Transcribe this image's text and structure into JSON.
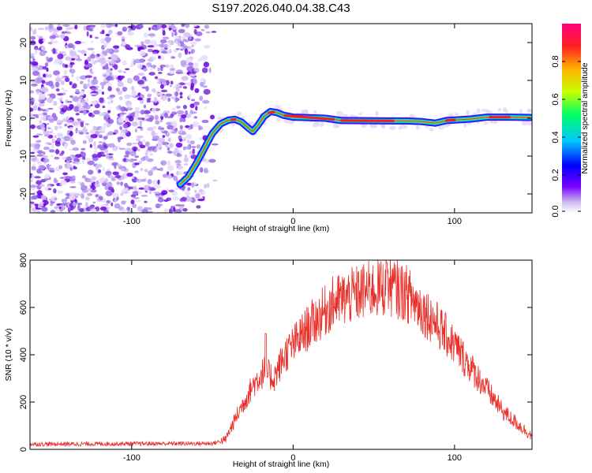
{
  "title": "S197.2026.040.04.38.C43",
  "chart_data": [
    {
      "type": "heatmap",
      "name": "spectrogram",
      "xlabel": "Height of straight line (km)",
      "ylabel": "Frequency (Hz)",
      "xlim": [
        -163,
        148
      ],
      "ylim": [
        -25,
        25
      ],
      "xticks": [
        -100,
        0,
        100
      ],
      "yticks": [
        20,
        10,
        0,
        -10,
        -20
      ],
      "colorbar": {
        "label": "Normalized spectral amplitude",
        "range": [
          0.0,
          1.0
        ],
        "ticks": [
          "0.0",
          "0.2",
          "0.4",
          "0.6",
          "0.8"
        ],
        "colors": [
          "#ffffff",
          "#c8b4f0",
          "#7800ff",
          "#0000ff",
          "#00c8ff",
          "#00ff64",
          "#c8ff00",
          "#ffb400",
          "#ff2020",
          "#ff0080"
        ]
      },
      "noise_region_x": [
        -163,
        -52
      ],
      "ridge": [
        {
          "x": -70,
          "y": -17.5
        },
        {
          "x": -65,
          "y": -15.5
        },
        {
          "x": -60,
          "y": -12
        },
        {
          "x": -55,
          "y": -8
        },
        {
          "x": -50,
          "y": -4
        },
        {
          "x": -45,
          "y": -1.5
        },
        {
          "x": -40,
          "y": -0.5
        },
        {
          "x": -36,
          "y": -0.3
        },
        {
          "x": -32,
          "y": -1.0
        },
        {
          "x": -28,
          "y": -2.5
        },
        {
          "x": -25,
          "y": -3.5
        },
        {
          "x": -22,
          "y": -2.0
        },
        {
          "x": -18,
          "y": 0.5
        },
        {
          "x": -14,
          "y": 1.8
        },
        {
          "x": -10,
          "y": 1.5
        },
        {
          "x": -6,
          "y": 0.8
        },
        {
          "x": 0,
          "y": 0.3
        },
        {
          "x": 20,
          "y": 0.0
        },
        {
          "x": 30,
          "y": -0.6
        },
        {
          "x": 60,
          "y": -0.7
        },
        {
          "x": 70,
          "y": -0.7
        },
        {
          "x": 80,
          "y": -0.9
        },
        {
          "x": 88,
          "y": -1.3
        },
        {
          "x": 95,
          "y": -0.6
        },
        {
          "x": 110,
          "y": -0.2
        },
        {
          "x": 120,
          "y": 0.3
        },
        {
          "x": 135,
          "y": 0.3
        },
        {
          "x": 147,
          "y": 0.2
        }
      ]
    },
    {
      "type": "line",
      "name": "snr",
      "xlabel": "Height of straight line (km)",
      "ylabel": "SNR (10 * v/v)",
      "xlim": [
        -163,
        148
      ],
      "ylim": [
        0,
        800
      ],
      "xticks": [
        -100,
        0,
        100
      ],
      "yticks": [
        0,
        200,
        400,
        600,
        800
      ],
      "color": "#e8302a",
      "envelope": [
        {
          "x": -163,
          "y": 22
        },
        {
          "x": -50,
          "y": 25
        },
        {
          "x": -42,
          "y": 40
        },
        {
          "x": -35,
          "y": 140
        },
        {
          "x": -25,
          "y": 270
        },
        {
          "x": -18,
          "y": 330
        },
        {
          "x": -12,
          "y": 300
        },
        {
          "x": -5,
          "y": 400
        },
        {
          "x": 10,
          "y": 520
        },
        {
          "x": 25,
          "y": 620
        },
        {
          "x": 45,
          "y": 670
        },
        {
          "x": 60,
          "y": 690
        },
        {
          "x": 70,
          "y": 660
        },
        {
          "x": 85,
          "y": 560
        },
        {
          "x": 100,
          "y": 440
        },
        {
          "x": 115,
          "y": 300
        },
        {
          "x": 130,
          "y": 160
        },
        {
          "x": 148,
          "y": 55
        }
      ],
      "peak": {
        "x": 58,
        "y": 790
      }
    }
  ]
}
